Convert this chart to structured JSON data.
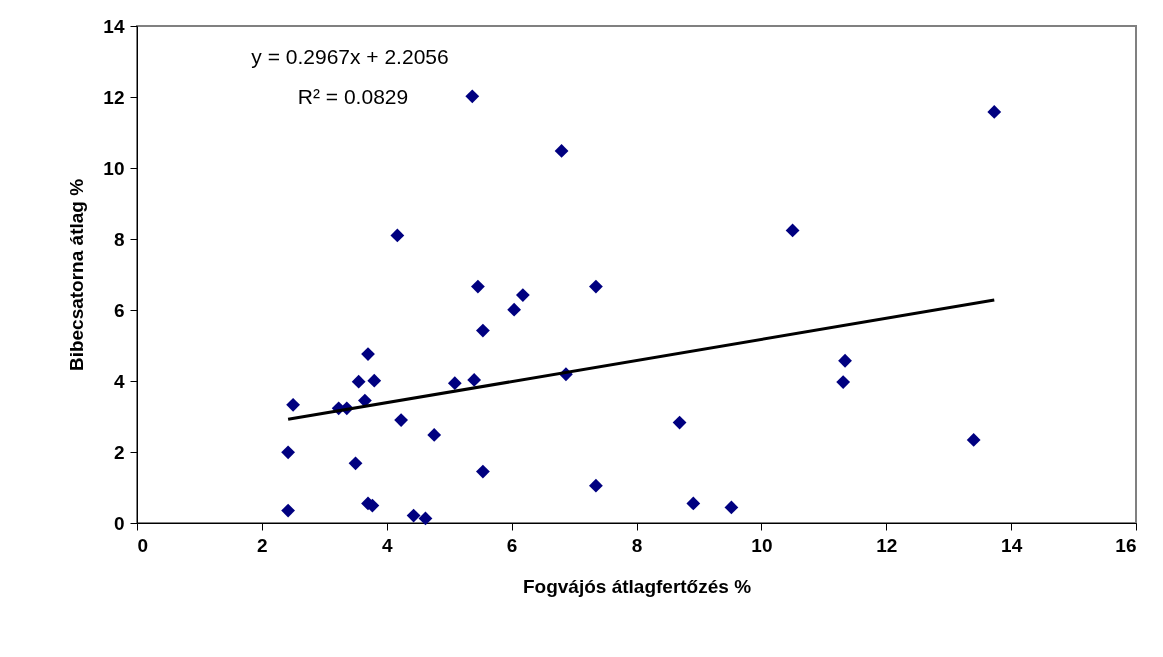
{
  "chart_data": {
    "type": "scatter",
    "xlabel": "Fogvájós átlagfertőzés %",
    "ylabel": "Bibecsatorna átlag %",
    "annotations": [
      "y = 0.2967x + 2.2056",
      "R² = 0.0829"
    ],
    "xlim": [
      0,
      16
    ],
    "xticks": [
      0,
      2,
      4,
      6,
      8,
      10,
      12,
      14,
      16
    ],
    "ylim": [
      0,
      14
    ],
    "yticks": [
      0,
      2,
      4,
      6,
      8,
      10,
      12,
      14
    ],
    "grid": false,
    "series": [
      {
        "marker": "diamond",
        "color": "#000080",
        "x": [
          5.37,
          6.8,
          4.17,
          5.46,
          7.35,
          6.18,
          6.04,
          5.54,
          3.7,
          3.55,
          3.8,
          5.4,
          5.09,
          6.87,
          2.5,
          3.23,
          3.36,
          3.65,
          4.23,
          4.76,
          2.42,
          3.5,
          5.54,
          7.35,
          2.42,
          3.7,
          3.77,
          4.43,
          4.62,
          13.73,
          10.5,
          11.34,
          11.31,
          8.69,
          13.4,
          8.91,
          9.52
        ],
        "values": [
          12.02,
          10.48,
          8.1,
          6.66,
          6.66,
          6.42,
          6.01,
          5.42,
          4.76,
          3.98,
          4.01,
          4.03,
          3.94,
          4.19,
          3.33,
          3.23,
          3.23,
          3.45,
          2.9,
          2.48,
          1.99,
          1.68,
          1.45,
          1.05,
          0.35,
          0.55,
          0.49,
          0.21,
          0.13,
          11.58,
          8.24,
          4.57,
          3.97,
          2.83,
          2.34,
          0.55,
          0.44
        ]
      },
      {
        "type": "line",
        "color": "#000000",
        "x": [
          2.42,
          13.73
        ],
        "values": [
          2.92,
          6.28
        ]
      }
    ]
  }
}
